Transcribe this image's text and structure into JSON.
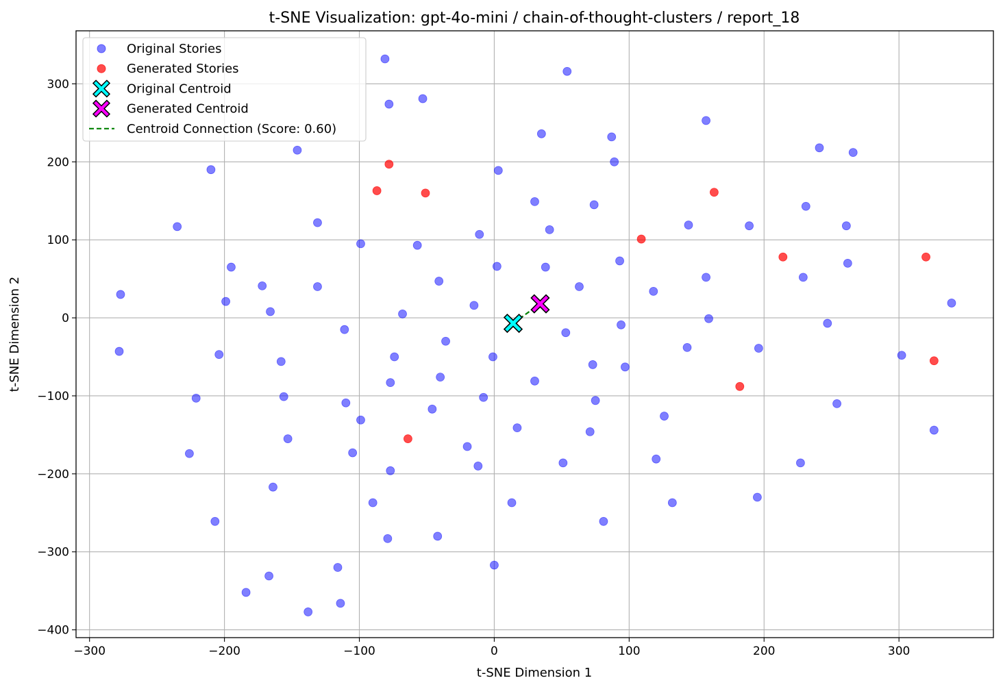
{
  "chart_data": {
    "type": "scatter",
    "title": "t-SNE Visualization: gpt-4o-mini / chain-of-thought-clusters / report_18",
    "xlabel": "t-SNE Dimension 1",
    "ylabel": "t-SNE Dimension 2",
    "xlim": [
      -310,
      370
    ],
    "ylim": [
      -410,
      368
    ],
    "xticks": [
      -300,
      -200,
      -100,
      0,
      100,
      200,
      300
    ],
    "yticks": [
      -400,
      -300,
      -200,
      -100,
      0,
      100,
      200,
      300
    ],
    "grid": true,
    "legend_position": "top-left",
    "series": [
      {
        "name": "Original Stories",
        "color": "#0000ff",
        "alpha": 0.5,
        "marker": "circle",
        "points": [
          [
            -81,
            332
          ],
          [
            54,
            316
          ],
          [
            -78,
            274
          ],
          [
            -53,
            281
          ],
          [
            -146,
            215
          ],
          [
            -210,
            190
          ],
          [
            -235,
            117
          ],
          [
            -131,
            122
          ],
          [
            35,
            236
          ],
          [
            87,
            232
          ],
          [
            89,
            200
          ],
          [
            157,
            253
          ],
          [
            241,
            218
          ],
          [
            266,
            212
          ],
          [
            3,
            189
          ],
          [
            30,
            149
          ],
          [
            74,
            145
          ],
          [
            41,
            113
          ],
          [
            -11,
            107
          ],
          [
            -99,
            95
          ],
          [
            -57,
            93
          ],
          [
            2,
            66
          ],
          [
            38,
            65
          ],
          [
            93,
            73
          ],
          [
            144,
            119
          ],
          [
            189,
            118
          ],
          [
            231,
            143
          ],
          [
            261,
            118
          ],
          [
            262,
            70
          ],
          [
            -195,
            65
          ],
          [
            -172,
            41
          ],
          [
            -131,
            40
          ],
          [
            -199,
            21
          ],
          [
            -166,
            8
          ],
          [
            -277,
            30
          ],
          [
            -41,
            47
          ],
          [
            63,
            40
          ],
          [
            118,
            34
          ],
          [
            157,
            52
          ],
          [
            229,
            52
          ],
          [
            339,
            19
          ],
          [
            -68,
            5
          ],
          [
            -15,
            16
          ],
          [
            159,
            -1
          ],
          [
            -278,
            -43
          ],
          [
            -204,
            -47
          ],
          [
            -111,
            -15
          ],
          [
            -74,
            -50
          ],
          [
            -36,
            -30
          ],
          [
            -1,
            -50
          ],
          [
            53,
            -19
          ],
          [
            94,
            -9
          ],
          [
            143,
            -38
          ],
          [
            196,
            -39
          ],
          [
            247,
            -7
          ],
          [
            302,
            -48
          ],
          [
            -158,
            -56
          ],
          [
            -156,
            -101
          ],
          [
            -221,
            -103
          ],
          [
            -77,
            -83
          ],
          [
            -40,
            -76
          ],
          [
            30,
            -81
          ],
          [
            73,
            -60
          ],
          [
            97,
            -63
          ],
          [
            -110,
            -109
          ],
          [
            -99,
            -131
          ],
          [
            -46,
            -117
          ],
          [
            -8,
            -102
          ],
          [
            75,
            -106
          ],
          [
            126,
            -126
          ],
          [
            254,
            -110
          ],
          [
            -153,
            -155
          ],
          [
            -226,
            -174
          ],
          [
            -105,
            -173
          ],
          [
            -20,
            -165
          ],
          [
            -12,
            -190
          ],
          [
            -77,
            -196
          ],
          [
            17,
            -141
          ],
          [
            71,
            -146
          ],
          [
            51,
            -186
          ],
          [
            120,
            -181
          ],
          [
            227,
            -186
          ],
          [
            326,
            -144
          ],
          [
            -164,
            -217
          ],
          [
            -90,
            -237
          ],
          [
            13,
            -237
          ],
          [
            132,
            -237
          ],
          [
            195,
            -230
          ],
          [
            -207,
            -261
          ],
          [
            -79,
            -283
          ],
          [
            -42,
            -280
          ],
          [
            81,
            -261
          ],
          [
            -167,
            -331
          ],
          [
            -116,
            -320
          ],
          [
            0,
            -317
          ],
          [
            -184,
            -352
          ],
          [
            -138,
            -377
          ],
          [
            -114,
            -366
          ]
        ]
      },
      {
        "name": "Generated Stories",
        "color": "#ff0000",
        "alpha": 0.7,
        "marker": "circle",
        "points": [
          [
            -78,
            197
          ],
          [
            -87,
            163
          ],
          [
            -51,
            160
          ],
          [
            109,
            101
          ],
          [
            163,
            161
          ],
          [
            214,
            78
          ],
          [
            320,
            78
          ],
          [
            326,
            -55
          ],
          [
            182,
            -88
          ],
          [
            -64,
            -155
          ]
        ]
      },
      {
        "name": "Original Centroid",
        "color": "#00ffff",
        "marker": "x-filled",
        "points": [
          [
            14,
            -7
          ]
        ]
      },
      {
        "name": "Generated Centroid",
        "color": "#ff00ff",
        "marker": "x-filled",
        "points": [
          [
            34,
            18
          ]
        ]
      },
      {
        "name": "Centroid Connection (Score: 0.60)",
        "color": "#008000",
        "style": "dashed-line",
        "points": [
          [
            14,
            -7
          ],
          [
            34,
            18
          ]
        ]
      }
    ]
  }
}
